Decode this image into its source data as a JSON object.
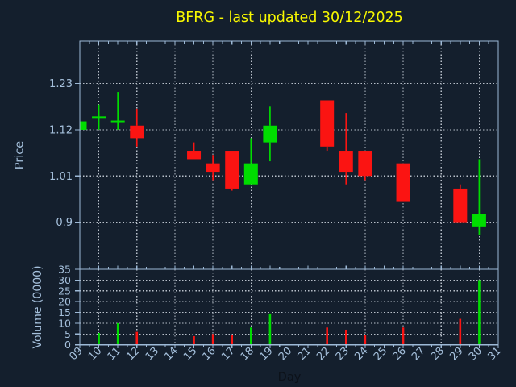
{
  "title": {
    "text": "BFRG - last updated 30/12/2025",
    "color": "#f8f800"
  },
  "colors": {
    "background": "#141f2d",
    "axis": "#9db9d6",
    "tick_label": "#a5c0dc",
    "grid": "#b9c0ca",
    "up": "#00dd00",
    "down": "#fb1412",
    "day_label": "#0c1119"
  },
  "price_panel": {
    "ylabel": "Price",
    "ytick_labels": [
      "1.23",
      "1.12",
      "1.01",
      "0.9"
    ],
    "ytick_values": [
      1.23,
      1.12,
      1.01,
      0.9
    ]
  },
  "volume_panel": {
    "ylabel": "Volume (0000)",
    "ytick_labels": [
      "35",
      "30",
      "25",
      "20",
      "15",
      "10",
      "5",
      "0"
    ],
    "ytick_values": [
      35,
      30,
      25,
      20,
      15,
      10,
      5,
      0
    ]
  },
  "x_axis": {
    "label": "Day",
    "tick_labels": [
      "09",
      "10",
      "11",
      "12",
      "13",
      "14",
      "15",
      "16",
      "17",
      "18",
      "19",
      "20",
      "21",
      "22",
      "23",
      "24",
      "25",
      "26",
      "27",
      "28",
      "29",
      "30",
      "31"
    ],
    "tick_values": [
      9,
      10,
      11,
      12,
      13,
      14,
      15,
      16,
      17,
      18,
      19,
      20,
      21,
      22,
      23,
      24,
      25,
      26,
      27,
      28,
      29,
      30,
      31
    ],
    "gridline_days": [
      10,
      12,
      14,
      16,
      18,
      20,
      22,
      24,
      26,
      28,
      30
    ]
  },
  "chart_data": [
    {
      "type": "candlestick",
      "title": "BFRG - last updated 30/12/2025",
      "xlabel": "Day",
      "ylabel": "Price",
      "xlim": [
        9,
        31
      ],
      "ylim": [
        0.788,
        1.331
      ],
      "grid": true,
      "points": [
        {
          "day": 9,
          "open": 1.12,
          "high": 1.14,
          "low": 1.12,
          "close": 1.14
        },
        {
          "day": 10,
          "open": 1.15,
          "high": 1.18,
          "low": 1.12,
          "close": 1.15
        },
        {
          "day": 11,
          "open": 1.14,
          "high": 1.21,
          "low": 1.12,
          "close": 1.14
        },
        {
          "day": 12,
          "open": 1.13,
          "high": 1.17,
          "low": 1.08,
          "close": 1.1
        },
        {
          "day": 15,
          "open": 1.07,
          "high": 1.09,
          "low": 1.05,
          "close": 1.05
        },
        {
          "day": 16,
          "open": 1.04,
          "high": 1.06,
          "low": 1.0,
          "close": 1.02
        },
        {
          "day": 17,
          "open": 1.07,
          "high": 1.07,
          "low": 0.975,
          "close": 0.98
        },
        {
          "day": 18,
          "open": 0.99,
          "high": 1.1,
          "low": 0.99,
          "close": 1.04
        },
        {
          "day": 19,
          "open": 1.09,
          "high": 1.175,
          "low": 1.045,
          "close": 1.13
        },
        {
          "day": 22,
          "open": 1.19,
          "high": 1.19,
          "low": 1.07,
          "close": 1.08
        },
        {
          "day": 23,
          "open": 1.07,
          "high": 1.16,
          "low": 0.99,
          "close": 1.02
        },
        {
          "day": 24,
          "open": 1.07,
          "high": 1.07,
          "low": 1.0,
          "close": 1.01
        },
        {
          "day": 26,
          "open": 1.04,
          "high": 1.04,
          "low": 0.95,
          "close": 0.95
        },
        {
          "day": 29,
          "open": 0.98,
          "high": 0.99,
          "low": 0.9,
          "close": 0.9
        },
        {
          "day": 30,
          "open": 0.89,
          "high": 1.05,
          "low": 0.87,
          "close": 0.92
        }
      ]
    },
    {
      "type": "bar",
      "ylabel": "Volume (0000)",
      "ylim": [
        0,
        35
      ],
      "grid": true,
      "x": [
        10,
        11,
        12,
        15,
        16,
        17,
        18,
        19,
        22,
        23,
        24,
        26,
        29,
        30
      ],
      "values": [
        5.5,
        10,
        6,
        4,
        5,
        4.5,
        8,
        14.5,
        8,
        7,
        4.5,
        8,
        12,
        30
      ]
    }
  ]
}
